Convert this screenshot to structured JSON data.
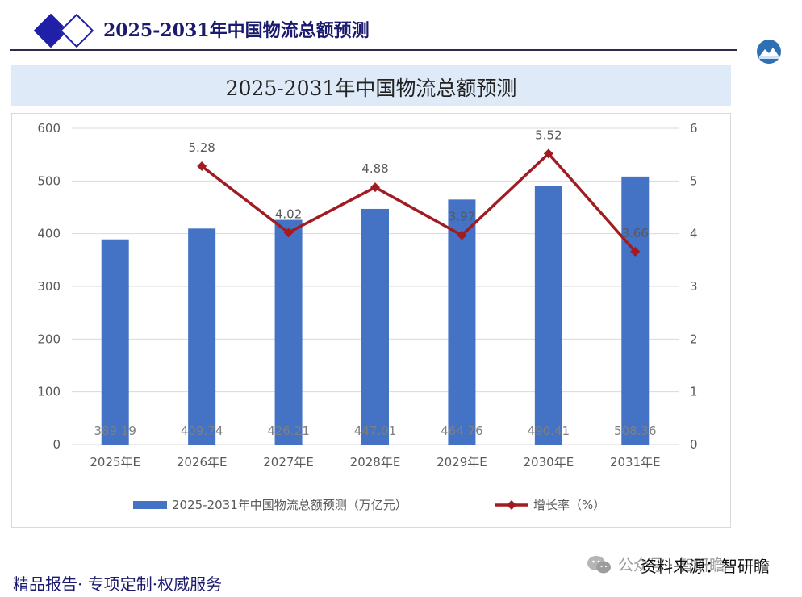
{
  "header": {
    "title": "2025-2031年中国物流总额预测"
  },
  "title_band": {
    "text": "2025-2031年中国物流总额预测"
  },
  "footer": {
    "slogan": "精品报告· 专项定制·权威服务",
    "source": "资料来源：智研瞻",
    "watermark": "公众号 · 智研瞻"
  },
  "colors": {
    "bar": "#4472c4",
    "line": "#a01c22",
    "header_text": "#1a1a6e",
    "band": "#deeaf8"
  },
  "chart_data": {
    "type": "bar",
    "categories": [
      "2025年E",
      "2026年E",
      "2027年E",
      "2028年E",
      "2029年E",
      "2030年E",
      "2031年E"
    ],
    "series": [
      {
        "name": "2025-2031年中国物流总额预测（万亿元）",
        "type": "bar",
        "axis": "left",
        "values": [
          389.19,
          409.74,
          426.21,
          447.01,
          464.76,
          490.41,
          508.36
        ],
        "labels": [
          "389.19",
          "409.74",
          "426.21",
          "447.01",
          "464.76",
          "490.41",
          "508.36"
        ]
      },
      {
        "name": "增长率（%）",
        "type": "line",
        "axis": "right",
        "values": [
          null,
          5.28,
          4.02,
          4.88,
          3.97,
          5.52,
          3.66
        ],
        "labels": [
          "",
          "5.28",
          "4.02",
          "4.88",
          "3.97",
          "5.52",
          "3.66"
        ]
      }
    ],
    "ylim": [
      0,
      600
    ],
    "yticks": [
      "0",
      "100",
      "200",
      "300",
      "400",
      "500",
      "600"
    ],
    "y2lim": [
      0,
      6
    ],
    "y2ticks": [
      "0",
      "1",
      "2",
      "3",
      "4",
      "5",
      "6"
    ],
    "grid": true,
    "legend_position": "bottom"
  }
}
